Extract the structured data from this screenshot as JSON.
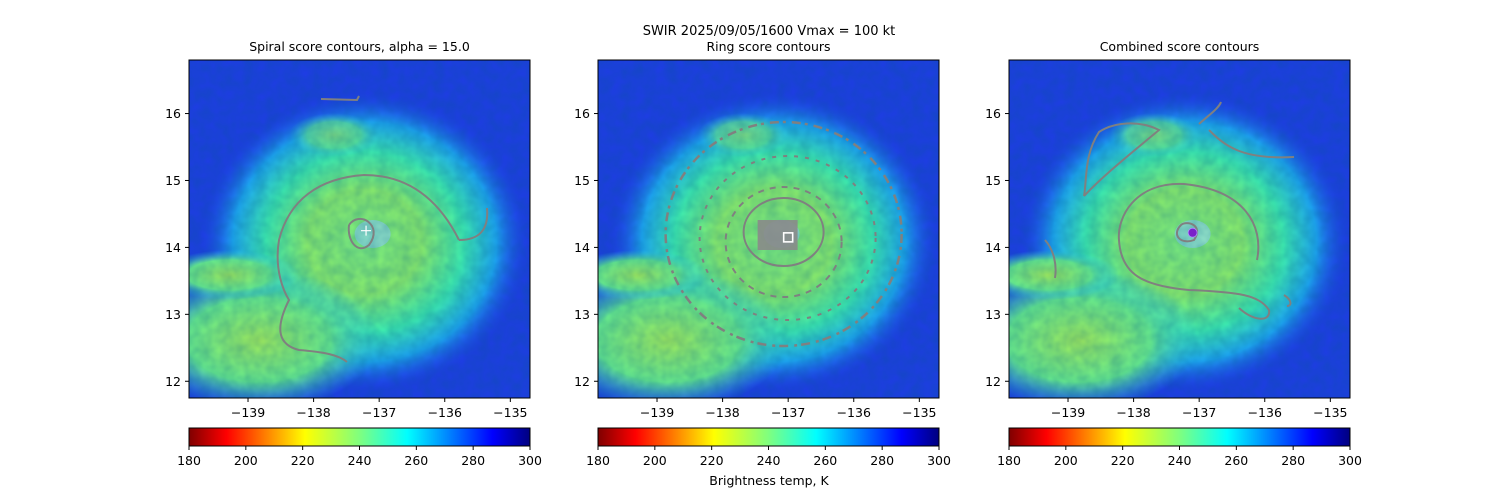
{
  "figure": {
    "suptitle_line1": "SWIR  2025/09/05/1600    Vmax = 100 kt",
    "colorbar_label": "Brightness temp, K",
    "colormap": "jet_r",
    "vmin": 180,
    "vmax": 300,
    "contour_color": "#808080",
    "marker_colors": {
      "ring_center": "#ffffff",
      "combined_center": "#7a22c9"
    }
  },
  "chart_data": [
    {
      "type": "heatmap",
      "title": "Spiral score contours, alpha = 15.0",
      "xlim": [
        -139.9,
        -134.7
      ],
      "ylim": [
        11.75,
        16.8
      ],
      "xticks": [
        -139,
        -138,
        -137,
        -136,
        -135
      ],
      "yticks": [
        12,
        13,
        14,
        15,
        16
      ],
      "xtick_labels": [
        "−139",
        "−138",
        "−137",
        "−136",
        "−135"
      ],
      "ytick_labels": [
        "12",
        "13",
        "14",
        "15",
        "16"
      ],
      "storm_center": [
        -137.1,
        14.2
      ],
      "marker": {
        "shape": "plus",
        "lon": -137.2,
        "lat": 14.25,
        "color": "#ffffff"
      },
      "colorbar_ticks": [
        "180",
        "200",
        "220",
        "240",
        "260",
        "280",
        "300"
      ]
    },
    {
      "type": "heatmap",
      "title": "Ring score contours",
      "xlim": [
        -139.9,
        -134.7
      ],
      "ylim": [
        11.75,
        16.8
      ],
      "xticks": [
        -139,
        -138,
        -137,
        -136,
        -135
      ],
      "yticks": [
        12,
        13,
        14,
        15,
        16
      ],
      "xtick_labels": [
        "−139",
        "−138",
        "−137",
        "−136",
        "−135"
      ],
      "ytick_labels": [
        "12",
        "13",
        "14",
        "15",
        "16"
      ],
      "storm_center": [
        -137.1,
        14.2
      ],
      "marker": {
        "shape": "square",
        "lon": -137.0,
        "lat": 14.15,
        "color": "#ffffff"
      },
      "colorbar_ticks": [
        "180",
        "200",
        "220",
        "240",
        "260",
        "280",
        "300"
      ]
    },
    {
      "type": "heatmap",
      "title": "Combined score contours",
      "xlim": [
        -139.9,
        -134.7
      ],
      "ylim": [
        11.75,
        16.8
      ],
      "xticks": [
        -139,
        -138,
        -137,
        -136,
        -135
      ],
      "yticks": [
        12,
        13,
        14,
        15,
        16
      ],
      "xtick_labels": [
        "−139",
        "−138",
        "−137",
        "−136",
        "−135"
      ],
      "ytick_labels": [
        "12",
        "13",
        "14",
        "15",
        "16"
      ],
      "storm_center": [
        -137.1,
        14.2
      ],
      "marker": {
        "shape": "circle",
        "lon": -137.1,
        "lat": 14.22,
        "color": "#7a22c9"
      },
      "colorbar_ticks": [
        "180",
        "200",
        "220",
        "240",
        "260",
        "280",
        "300"
      ]
    }
  ]
}
